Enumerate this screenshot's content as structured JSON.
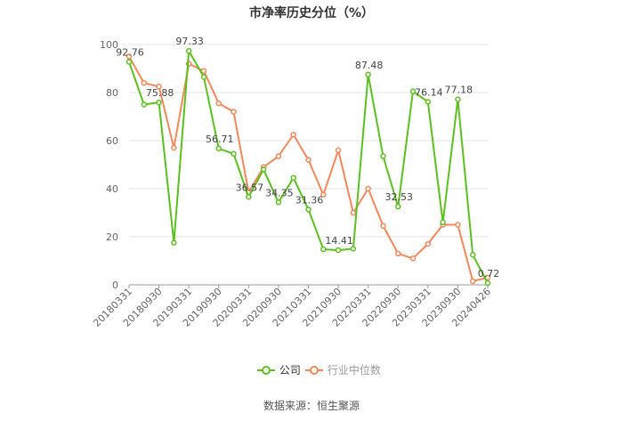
{
  "chart_data": {
    "type": "line",
    "title": "市净率历史分位（%）",
    "source": "数据来源：恒生聚源",
    "ylim": [
      0,
      100
    ],
    "yticks": [
      0,
      20,
      40,
      60,
      80,
      100
    ],
    "x_tick_labels": [
      "20180331",
      "20180930",
      "20190331",
      "20190930",
      "20200331",
      "20200930",
      "20210331",
      "20210930",
      "20220331",
      "20220930",
      "20230331",
      "20230930",
      "20240426"
    ],
    "x": [
      "20180331",
      "20180630",
      "20180930",
      "20181231",
      "20190331",
      "20190630",
      "20190930",
      "20191231",
      "20200331",
      "20200630",
      "20200930",
      "20201231",
      "20210331",
      "20210630",
      "20210930",
      "20211231",
      "20220331",
      "20220630",
      "20220930",
      "20221231",
      "20230331",
      "20230630",
      "20230930",
      "20231231",
      "20240426"
    ],
    "grid": true,
    "legend_position": "bottom",
    "series": [
      {
        "name": "公司",
        "color": "#5cc11f",
        "values": [
          92.76,
          75.0,
          75.88,
          17.5,
          97.33,
          86.5,
          56.71,
          54.5,
          36.57,
          48.0,
          34.35,
          44.5,
          31.36,
          14.8,
          14.41,
          15.0,
          87.48,
          53.5,
          32.53,
          80.5,
          76.14,
          26.0,
          77.18,
          12.5,
          0.72
        ],
        "labeled_indices": [
          0,
          2,
          4,
          6,
          8,
          10,
          12,
          14,
          16,
          18,
          20,
          22,
          24
        ]
      },
      {
        "name": "行业中位数",
        "color": "#f5875a",
        "values": [
          95.0,
          84.0,
          82.5,
          57.0,
          92.0,
          89.0,
          75.5,
          72.0,
          38.5,
          49.0,
          53.5,
          62.5,
          52.0,
          37.5,
          56.0,
          30.0,
          40.0,
          24.5,
          13.0,
          11.0,
          17.0,
          25.0,
          25.0,
          1.5,
          3.0
        ]
      }
    ]
  }
}
